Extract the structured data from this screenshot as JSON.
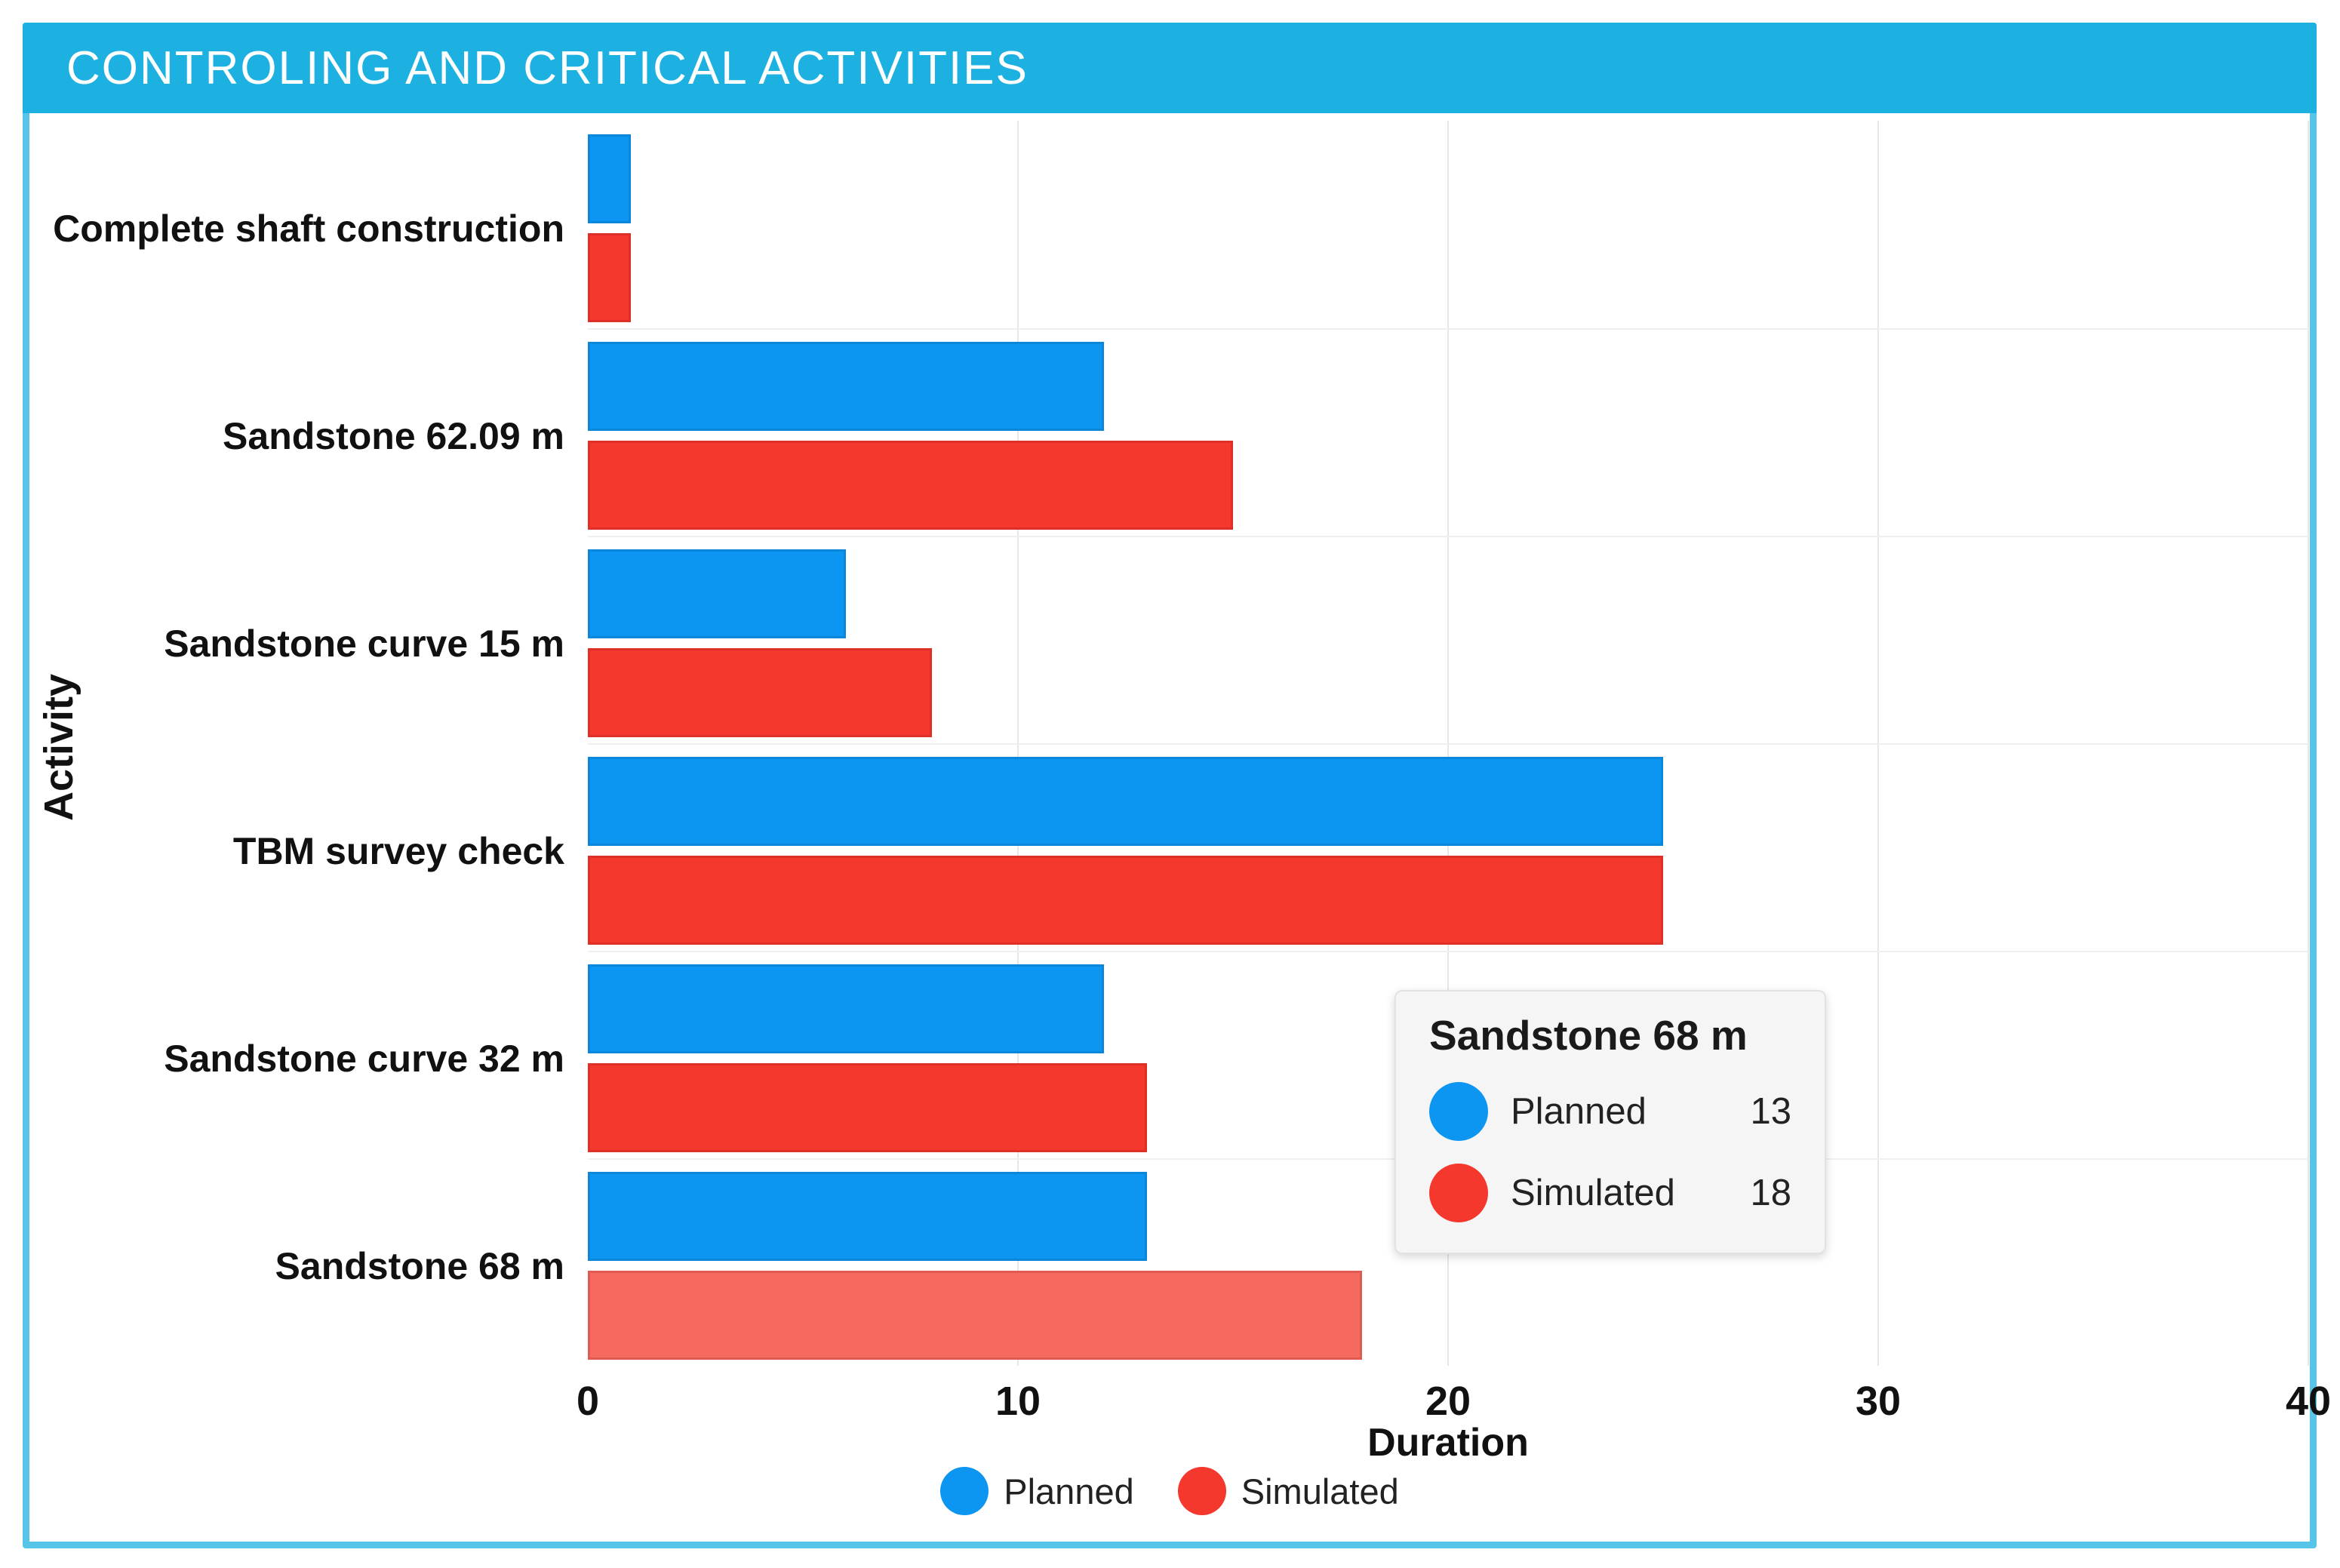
{
  "header": {
    "title": "CONTROLING AND CRITICAL ACTIVITIES"
  },
  "chart_data": {
    "type": "bar",
    "orientation": "horizontal",
    "title": "CONTROLING AND CRITICAL ACTIVITIES",
    "categories": [
      "Complete shaft construction",
      "Sandstone 62.09 m",
      "Sandstone curve 15 m",
      "TBM survey check",
      "Sandstone curve 32 m",
      "Sandstone 68 m"
    ],
    "series": [
      {
        "name": "Planned",
        "color_key": "planned",
        "values": [
          1,
          12,
          6,
          25,
          12,
          13
        ]
      },
      {
        "name": "Simulated",
        "color_key": "simulated",
        "values": [
          1,
          15,
          8,
          25,
          13,
          18
        ]
      }
    ],
    "xlabel": "Duration",
    "ylabel": "Activity",
    "xlim": [
      0,
      40
    ],
    "xticks": [
      0,
      10,
      20,
      30,
      40
    ],
    "grid": "vertical-light-gray",
    "legend_position": "bottom-center",
    "highlight": {
      "category_index": 5,
      "series_index": 1
    }
  },
  "tooltip": {
    "title": "Sandstone 68 m",
    "rows": [
      {
        "label": "Planned",
        "value": "13"
      },
      {
        "label": "Simulated",
        "value": "18"
      }
    ]
  },
  "colors": {
    "header_bg": "#1DB1E2",
    "card_border": "#56C5E9",
    "planned": "#0C96F2",
    "simulated": "#F4382E",
    "simulated_hover": "#F5695F",
    "grid": "#E7E7E7",
    "row_line": "#EFEFEF",
    "tooltip_bg": "#F5F5F5",
    "text": "#111111"
  }
}
